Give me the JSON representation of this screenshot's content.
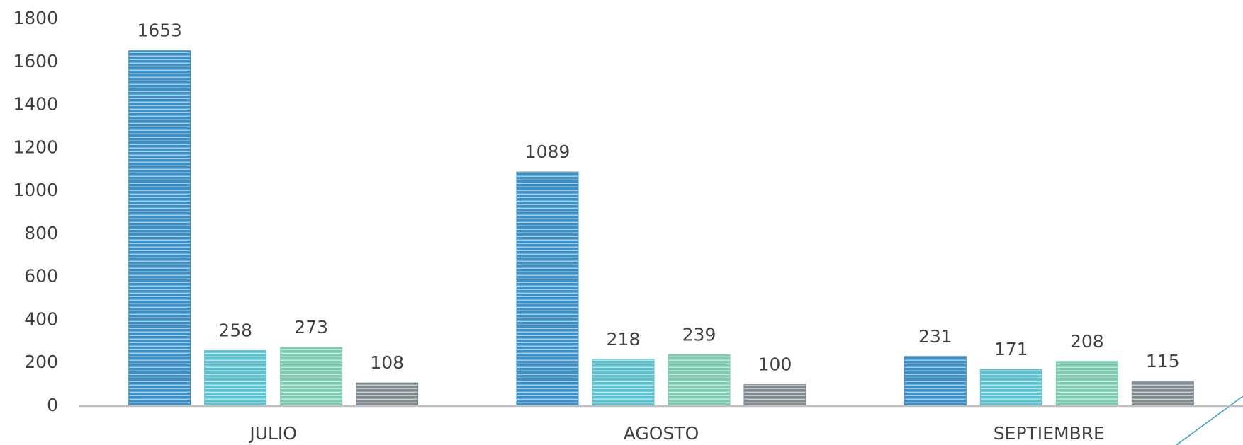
{
  "chart_data": {
    "type": "bar",
    "categories": [
      "JULIO",
      "AGOSTO",
      "SEPTIEMBRE"
    ],
    "series": [
      {
        "color": "#3a8fc6",
        "values": [
          1653,
          1089,
          231
        ]
      },
      {
        "color": "#5cc0cf",
        "values": [
          258,
          218,
          171
        ]
      },
      {
        "color": "#7ccbb0",
        "values": [
          273,
          239,
          208
        ]
      },
      {
        "color": "#7f8a8f",
        "values": [
          108,
          100,
          115
        ]
      }
    ],
    "ylim": [
      0,
      1800
    ],
    "yticks": [
      0,
      200,
      400,
      600,
      800,
      1000,
      1200,
      1400,
      1600,
      1800
    ],
    "grid": false,
    "data_labels": true
  }
}
